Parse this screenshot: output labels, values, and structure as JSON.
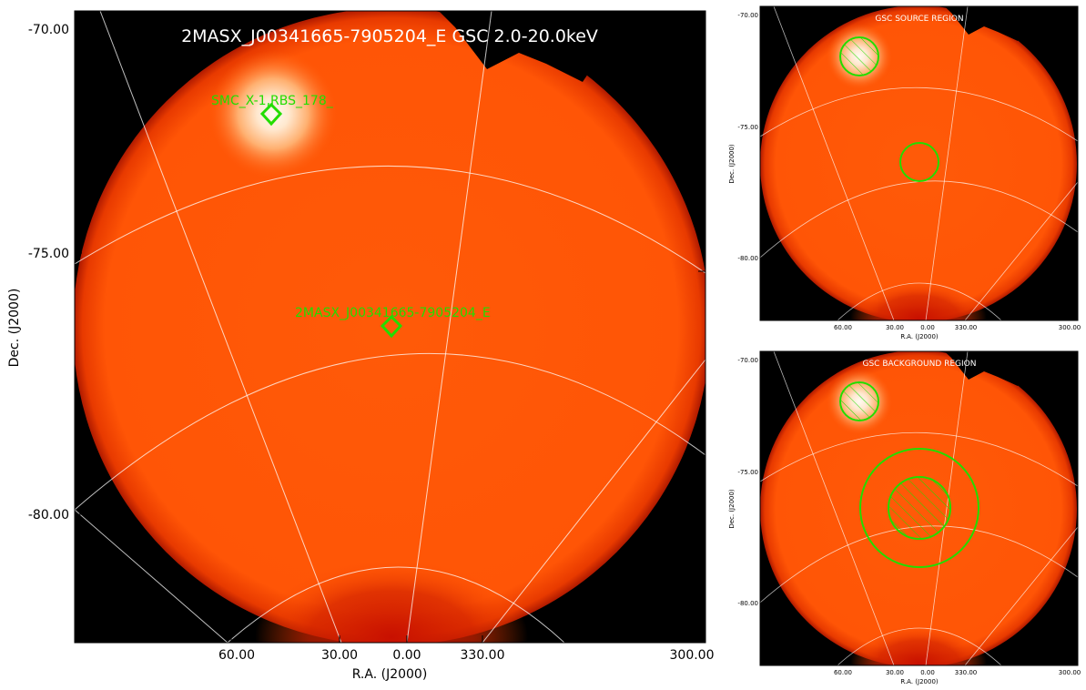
{
  "main": {
    "title": "2MASX_J00341665-7905204_E GSC 2.0-20.0keV",
    "xlabel": "R.A. (J2000)",
    "ylabel": "Dec. (J2000)",
    "y_ticks": [
      "-70.00",
      "-75.00",
      "-80.00"
    ],
    "x_ticks": [
      "60.00",
      "30.00",
      "0.00",
      "330.00",
      "300.00"
    ],
    "sources": [
      {
        "label": "SMC_X-1,RBS_178_"
      },
      {
        "label": "2MASX_J00341665-7905204_E"
      }
    ]
  },
  "source_panel": {
    "title": "GSC SOURCE REGION",
    "xlabel": "R.A. (J2000)",
    "ylabel": "Dec. (J2000)",
    "y_ticks": [
      "-70.00",
      "-75.00",
      "-80.00"
    ],
    "x_ticks": [
      "60.00",
      "30.00",
      "0.00",
      "330.00",
      "300.00"
    ]
  },
  "background_panel": {
    "title": "GSC BACKGROUND REGION",
    "xlabel": "R.A. (J2000)",
    "ylabel": "Dec. (J2000)",
    "y_ticks": [
      "-70.00",
      "-75.00",
      "-80.00"
    ],
    "x_ticks": [
      "60.00",
      "30.00",
      "0.00",
      "330.00",
      "300.00"
    ]
  },
  "colors": {
    "sky": "#000000",
    "field": "#ff5a08",
    "bright": "#fff8ee",
    "region": "#22dd00",
    "grid": "#ffffff"
  }
}
